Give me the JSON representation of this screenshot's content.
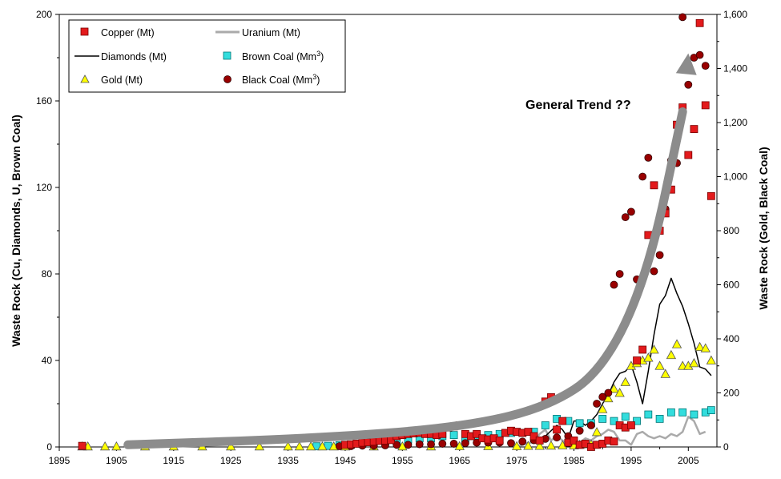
{
  "chart_data": {
    "type": "scatter",
    "ylabel_left": "Waste Rock (Cu, Diamonds, U, Brown Coal)",
    "ylabel_right": "Waste Rock (Gold, Black Coal)",
    "xlim": [
      1895,
      2010
    ],
    "ylim_left": [
      0,
      200
    ],
    "ylim_right": [
      0,
      1600
    ],
    "x_ticks": [
      "1895",
      "1905",
      "1915",
      "1925",
      "1935",
      "1945",
      "1955",
      "1965",
      "1975",
      "1985",
      "1995",
      "2005"
    ],
    "y_left_ticks": [
      "0",
      "40",
      "80",
      "120",
      "160",
      "200"
    ],
    "y_right_ticks": [
      "0",
      "200",
      "400",
      "600",
      "800",
      "1,000",
      "1,200",
      "1,400",
      "1,600"
    ],
    "annotation": "General Trend ??",
    "trend_arrow": [
      [
        1907,
        1
      ],
      [
        1940,
        4
      ],
      [
        1965,
        9
      ],
      [
        1980,
        18
      ],
      [
        1990,
        35
      ],
      [
        1998,
        80
      ],
      [
        2004,
        155
      ],
      [
        2005,
        182
      ]
    ],
    "legend": {
      "placement": "top-left",
      "entries": [
        {
          "key": "copper",
          "label": "Copper (Mt)",
          "sup": "",
          "tail": ""
        },
        {
          "key": "uranium",
          "label": "Uranium (Mt)",
          "sup": "",
          "tail": ""
        },
        {
          "key": "diamonds",
          "label": "Diamonds (Mt)",
          "sup": "",
          "tail": ""
        },
        {
          "key": "brown_coal",
          "label": "Brown Coal (Mm",
          "sup": "3",
          "tail": ")"
        },
        {
          "key": "gold",
          "label": "Gold (Mt)",
          "sup": "",
          "tail": ""
        },
        {
          "key": "black_coal",
          "label": "Black Coal (Mm",
          "sup": "3",
          "tail": ")"
        }
      ]
    },
    "series": [
      {
        "name": "Copper (Mt)",
        "key": "copper",
        "axis": "left",
        "marker": "square",
        "color": "#e31a1c",
        "x": [
          1899,
          1945,
          1946,
          1947,
          1948,
          1949,
          1950,
          1951,
          1952,
          1953,
          1954,
          1955,
          1956,
          1957,
          1958,
          1959,
          1960,
          1961,
          1962,
          1963,
          1964,
          1965,
          1966,
          1967,
          1968,
          1969,
          1970,
          1971,
          1972,
          1973,
          1974,
          1975,
          1976,
          1977,
          1978,
          1979,
          1980,
          1981,
          1982,
          1983,
          1984,
          1985,
          1986,
          1987,
          1988,
          1989,
          1990,
          1991,
          1992,
          1993,
          1994,
          1995,
          1996,
          1997,
          1998,
          1999,
          2000,
          2001,
          2002,
          2003,
          2004,
          2005,
          2006,
          2007,
          2008,
          2009
        ],
        "y": [
          0.5,
          1,
          1.2,
          1.5,
          2,
          2.2,
          2.5,
          2.8,
          3,
          3.2,
          5,
          5.5,
          6,
          6.3,
          6.5,
          6,
          6,
          5.5,
          6,
          9,
          9.5,
          10,
          6,
          5,
          6,
          4,
          3.5,
          4,
          3,
          6.5,
          7.5,
          7,
          6.5,
          7,
          5,
          3,
          21,
          23,
          8,
          12,
          2,
          3,
          1,
          1.5,
          0,
          1,
          1.5,
          3,
          2.5,
          10,
          9,
          10,
          40,
          45,
          98,
          121,
          100,
          108,
          119,
          149,
          157,
          135,
          147,
          196,
          158,
          116
        ]
      },
      {
        "name": "Gold (Mt)",
        "key": "gold",
        "axis": "right",
        "marker": "triangle",
        "color": "#ffff00",
        "x": [
          1899,
          1900,
          1903,
          1905,
          1910,
          1915,
          1920,
          1925,
          1930,
          1935,
          1937,
          1939,
          1941,
          1943,
          1945,
          1950,
          1955,
          1960,
          1965,
          1970,
          1975,
          1977,
          1979,
          1981,
          1983,
          1985,
          1986,
          1987,
          1988,
          1989,
          1990,
          1991,
          1992,
          1993,
          1994,
          1995,
          1996,
          1997,
          1998,
          1999,
          2000,
          2001,
          2002,
          2003,
          2004,
          2005,
          2006,
          2007,
          2008,
          2009
        ],
        "y": [
          2,
          2,
          2,
          2,
          2,
          2,
          2,
          2,
          2,
          2,
          2,
          2,
          2,
          2,
          2,
          2,
          2,
          2,
          3,
          3,
          3,
          4,
          4,
          5,
          6,
          6,
          8,
          10,
          10,
          55,
          140,
          180,
          215,
          200,
          240,
          300,
          310,
          320,
          330,
          360,
          300,
          270,
          340,
          380,
          300,
          300,
          310,
          370,
          365,
          320
        ]
      },
      {
        "name": "Brown Coal (Mm3)",
        "key": "brown_coal",
        "axis": "left",
        "marker": "square",
        "color": "#33dddd",
        "x": [
          1940,
          1942,
          1944,
          1946,
          1948,
          1950,
          1952,
          1954,
          1956,
          1958,
          1960,
          1962,
          1964,
          1966,
          1968,
          1970,
          1972,
          1974,
          1976,
          1978,
          1980,
          1982,
          1984,
          1986,
          1988,
          1990,
          1992,
          1994,
          1996,
          1998,
          2000,
          2002,
          2004,
          2006,
          2008,
          2009
        ],
        "y": [
          0.3,
          0.5,
          0.8,
          1,
          1.5,
          2,
          2.5,
          3,
          3.5,
          4,
          4,
          5,
          5.5,
          4,
          5,
          5.5,
          6,
          6.5,
          6.5,
          7,
          10,
          13,
          12,
          11,
          11,
          13,
          12,
          14,
          12,
          15,
          13,
          16,
          16,
          15,
          16,
          17
        ]
      },
      {
        "name": "Black Coal (Mm3)",
        "key": "black_coal",
        "axis": "right",
        "marker": "circle",
        "color": "#990000",
        "x": [
          1944,
          1946,
          1948,
          1950,
          1952,
          1954,
          1956,
          1958,
          1960,
          1962,
          1964,
          1966,
          1968,
          1970,
          1972,
          1974,
          1976,
          1978,
          1980,
          1982,
          1984,
          1986,
          1988,
          1989,
          1990,
          1991,
          1992,
          1993,
          1994,
          1995,
          1996,
          1997,
          1998,
          1999,
          2000,
          2001,
          2002,
          2003,
          2004,
          2005,
          2006,
          2007,
          2008
        ],
        "y": [
          3,
          3,
          5,
          5,
          6,
          8,
          8,
          10,
          10,
          12,
          12,
          14,
          16,
          16,
          16,
          14,
          20,
          25,
          30,
          35,
          40,
          60,
          80,
          160,
          185,
          200,
          600,
          640,
          850,
          870,
          620,
          1000,
          1070,
          650,
          710,
          880,
          1060,
          1050,
          1590,
          1340,
          1440,
          1450,
          1410
        ]
      },
      {
        "name": "Diamonds (Mt)",
        "key": "diamonds",
        "axis": "left",
        "marker": "line",
        "color": "#000000",
        "x": [
          1980,
          1982,
          1983,
          1984,
          1985,
          1986,
          1987,
          1988,
          1989,
          1990,
          1991,
          1992,
          1993,
          1994,
          1995,
          1996,
          1997,
          1998,
          1999,
          2000,
          2001,
          2002,
          2003,
          2004,
          2005,
          2006,
          2007,
          2008,
          2009
        ],
        "y": [
          5,
          10,
          8,
          4,
          12,
          12,
          10,
          12,
          15,
          20,
          24,
          30,
          34,
          35,
          38,
          30,
          20,
          35,
          52,
          66,
          70,
          78,
          71,
          65,
          57,
          48,
          37,
          36,
          33
        ]
      },
      {
        "name": "Uranium (Mt)",
        "key": "uranium",
        "axis": "left",
        "marker": "line",
        "color": "#aaaaaa",
        "x": [
          1975,
          1976,
          1977,
          1978,
          1979,
          1980,
          1981,
          1982,
          1983,
          1984,
          1985,
          1986,
          1987,
          1988,
          1989,
          1990,
          1991,
          1992,
          1993,
          1994,
          1995,
          1996,
          1997,
          1998,
          1999,
          2000,
          2001,
          2002,
          2003,
          2004,
          2005,
          2006,
          2007,
          2008
        ],
        "y": [
          0,
          1,
          2,
          2,
          6,
          8,
          3,
          5,
          3,
          1,
          0,
          2,
          4,
          3,
          5,
          6,
          8,
          7,
          3,
          3,
          1,
          6,
          7,
          5,
          4,
          5,
          4,
          6,
          5,
          7,
          14,
          12,
          6,
          7
        ]
      }
    ]
  }
}
